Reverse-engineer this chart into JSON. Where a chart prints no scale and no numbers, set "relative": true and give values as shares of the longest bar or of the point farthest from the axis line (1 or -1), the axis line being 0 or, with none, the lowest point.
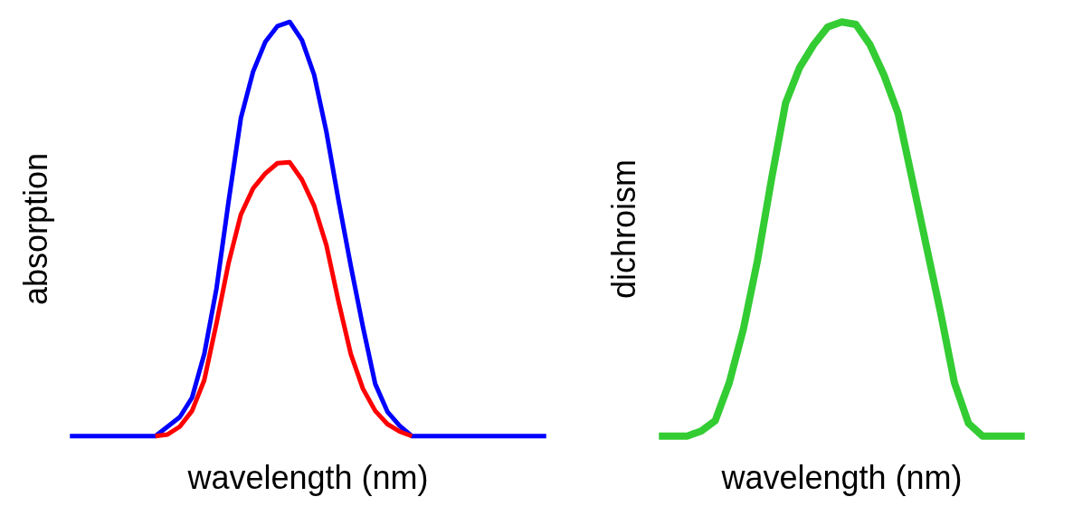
{
  "chart_data": [
    {
      "type": "line",
      "relative": true,
      "xlabel": "wavelength (nm)",
      "ylabel": "absorption",
      "categories": [
        null,
        null,
        null,
        null,
        null,
        null,
        null,
        null,
        null,
        null,
        null,
        null,
        null,
        null,
        null,
        null,
        null,
        null,
        null,
        null,
        null,
        null,
        null,
        null,
        null,
        null,
        null,
        null,
        null,
        null,
        null,
        null,
        null,
        null,
        null,
        null,
        null,
        null,
        null,
        null
      ],
      "series": [
        {
          "color": "#0000ff",
          "values": [
            0,
            0,
            0,
            0,
            0,
            0,
            0,
            0,
            0.023,
            0.046,
            0.093,
            0.198,
            0.356,
            0.568,
            0.768,
            0.88,
            0.952,
            0.99,
            1,
            0.956,
            0.872,
            0.735,
            0.568,
            0.411,
            0.263,
            0.126,
            0.059,
            0.025,
            0,
            0,
            0,
            0,
            0,
            0,
            0,
            0,
            0,
            0,
            0,
            0
          ]
        },
        {
          "color": "#ff0000",
          "values": [
            null,
            null,
            null,
            null,
            null,
            null,
            null,
            0,
            0.004,
            0.023,
            0.061,
            0.135,
            0.272,
            0.419,
            0.535,
            0.598,
            0.634,
            0.659,
            0.661,
            0.619,
            0.556,
            0.461,
            0.324,
            0.198,
            0.114,
            0.061,
            0.029,
            0.011,
            0,
            null,
            null,
            null,
            null,
            null,
            null,
            null,
            null,
            null,
            null,
            null
          ]
        }
      ]
    },
    {
      "type": "line",
      "relative": true,
      "xlabel": "wavelength (nm)",
      "ylabel": "dichroism",
      "categories": [
        null,
        null,
        null,
        null,
        null,
        null,
        null,
        null,
        null,
        null,
        null,
        null,
        null,
        null,
        null,
        null,
        null,
        null,
        null,
        null,
        null,
        null,
        null,
        null,
        null,
        null,
        null
      ],
      "series": [
        {
          "color": "#33cc33",
          "values": [
            0,
            0,
            0,
            0.012,
            0.037,
            0.129,
            0.258,
            0.423,
            0.62,
            0.804,
            0.89,
            0.945,
            0.988,
            1,
            0.994,
            0.945,
            0.871,
            0.779,
            0.62,
            0.46,
            0.301,
            0.129,
            0.031,
            0,
            0,
            0,
            0
          ]
        }
      ]
    }
  ]
}
